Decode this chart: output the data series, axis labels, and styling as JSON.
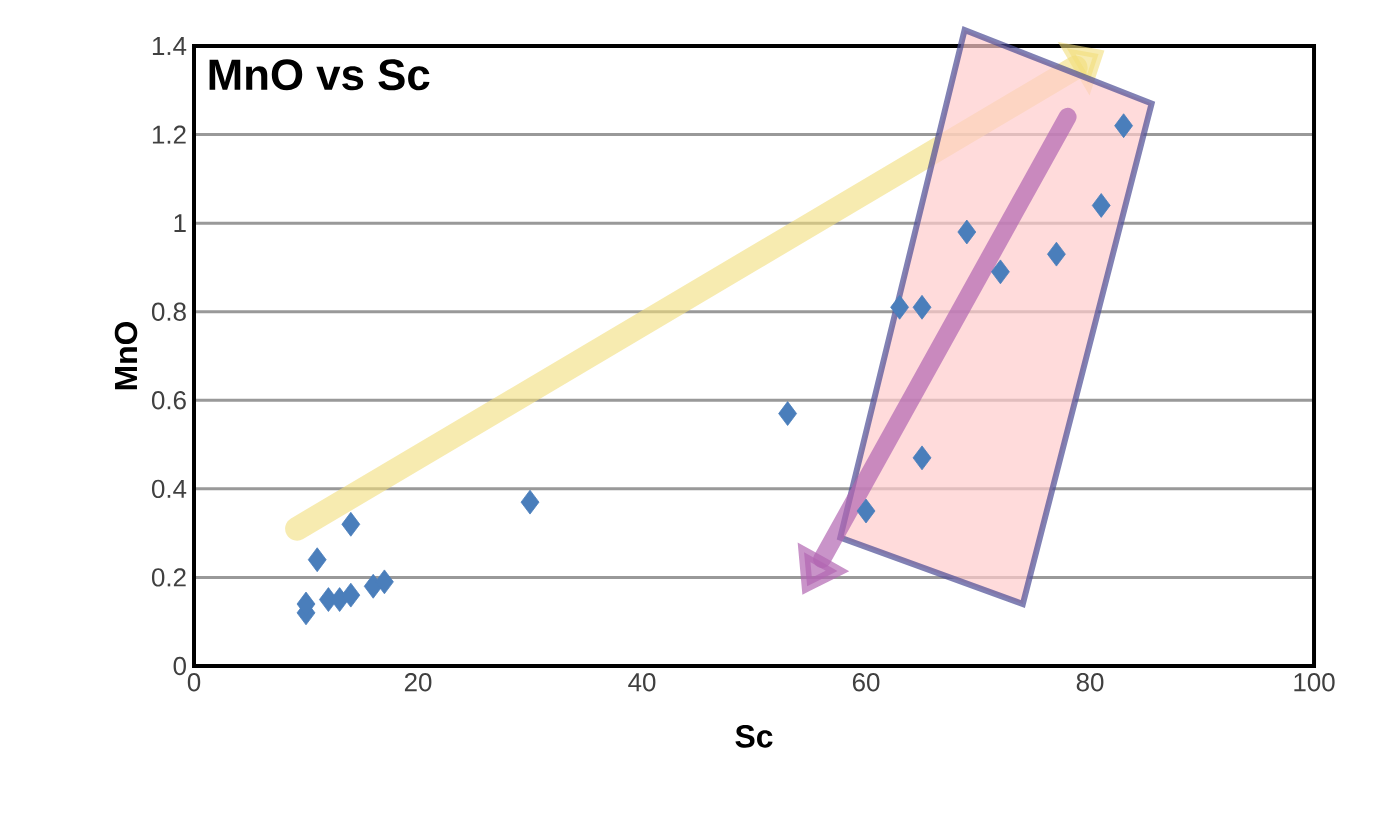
{
  "chart_data": {
    "type": "scatter",
    "title": "MnO vs Sc",
    "xlabel": "Sc",
    "ylabel": "MnO",
    "x": [
      10,
      10,
      11,
      12,
      13,
      14,
      14,
      16,
      17,
      30,
      53,
      60,
      63,
      65,
      65,
      69,
      72,
      77,
      81,
      83
    ],
    "values": [
      0.12,
      0.14,
      0.24,
      0.15,
      0.15,
      0.32,
      0.16,
      0.18,
      0.19,
      0.37,
      0.57,
      0.35,
      0.81,
      0.81,
      0.47,
      0.98,
      0.89,
      0.93,
      1.04,
      1.22
    ],
    "color": "#4a7ebb",
    "marker": "diamond",
    "xlim": [
      0,
      100
    ],
    "xticks": [
      0,
      20,
      40,
      60,
      80,
      100
    ],
    "ylim": [
      0,
      1.4
    ],
    "yticks": [
      0,
      0.2,
      0.4,
      0.6,
      0.8,
      1,
      1.2,
      1.4
    ],
    "grid": "y"
  }
}
